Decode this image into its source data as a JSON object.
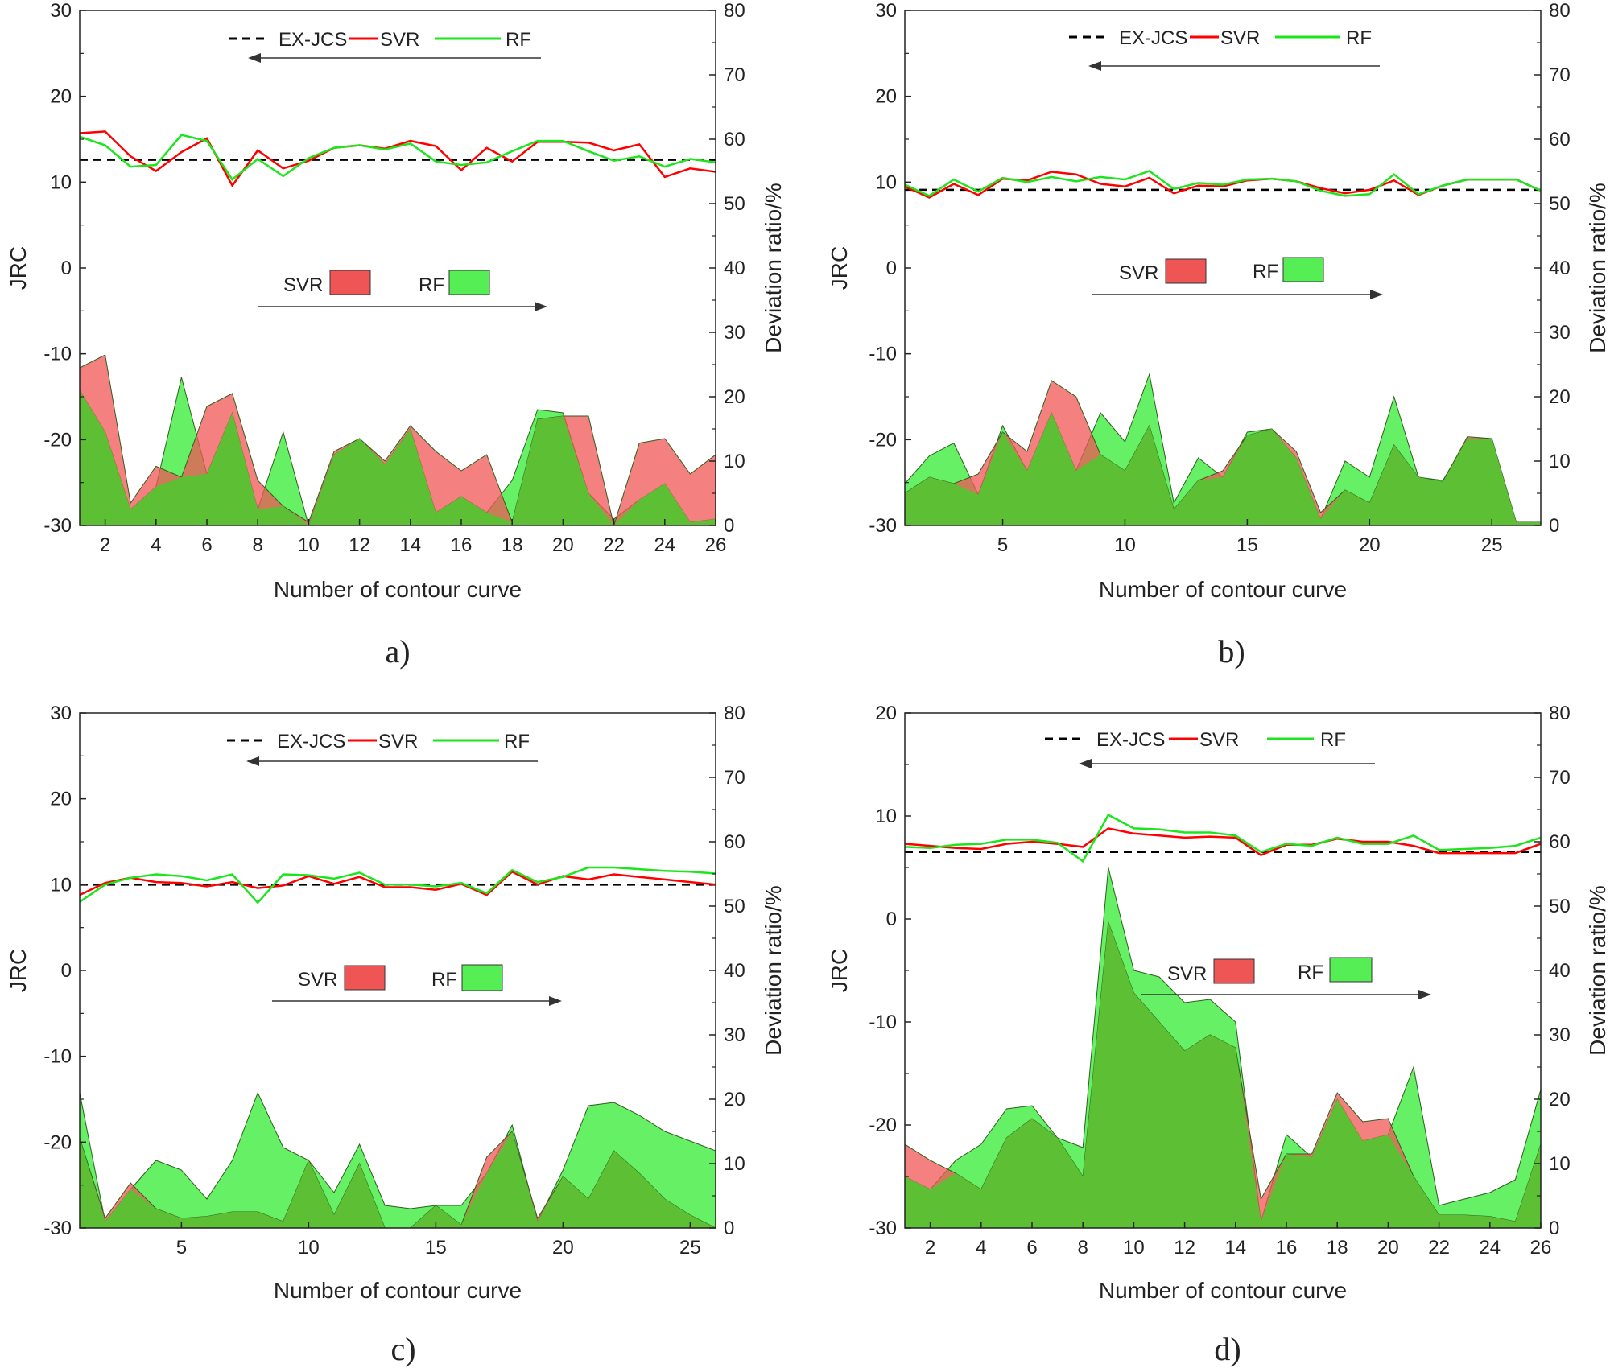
{
  "colors": {
    "svr_line": "#ff0000",
    "rf_line": "#1be51b",
    "svr_fill": "#f05555",
    "rf_fill": "#55ee55",
    "overlap_fill": "#5cbf34",
    "reference": "#000000",
    "axis": "#222222"
  },
  "chart_data": [
    {
      "type": "line+area",
      "caption": "a)",
      "xlabel": "Number of contour curve",
      "ylabel_left": "JRC",
      "ylabel_right": "Deviation ratio/%",
      "xlim": [
        1,
        26
      ],
      "xticks": [
        2,
        4,
        6,
        8,
        10,
        12,
        14,
        16,
        18,
        20,
        22,
        24,
        26
      ],
      "ylim_left": [
        -30,
        30
      ],
      "yticks_left": [
        -30,
        -20,
        -10,
        0,
        10,
        20,
        30
      ],
      "ylim_right": [
        0,
        80
      ],
      "yticks_right": [
        0,
        10,
        20,
        30,
        40,
        50,
        60,
        70,
        80
      ],
      "x": [
        1,
        2,
        3,
        4,
        5,
        6,
        7,
        8,
        9,
        10,
        11,
        12,
        13,
        14,
        15,
        16,
        17,
        18,
        19,
        20,
        21,
        22,
        23,
        24,
        25,
        26
      ],
      "ex_jcs": 12.6,
      "line_series": [
        {
          "name": "SVR",
          "axis": "left",
          "values": [
            15.7,
            15.9,
            13.0,
            11.3,
            13.5,
            15.1,
            9.6,
            13.7,
            11.6,
            12.5,
            14.0,
            14.3,
            13.9,
            14.8,
            14.2,
            11.4,
            14.0,
            12.4,
            14.7,
            14.7,
            14.6,
            13.7,
            14.4,
            10.6,
            11.6,
            11.2
          ]
        },
        {
          "name": "RF",
          "axis": "left",
          "values": [
            15.3,
            14.3,
            11.8,
            12.0,
            15.5,
            14.8,
            10.3,
            12.7,
            10.7,
            12.8,
            14.0,
            14.3,
            13.8,
            14.5,
            12.4,
            12.0,
            12.3,
            13.6,
            14.8,
            14.8,
            13.6,
            12.5,
            13.0,
            11.8,
            12.7,
            12.3
          ]
        }
      ],
      "area_series": [
        {
          "name": "SVR",
          "axis": "right",
          "values": [
            24.5,
            26.5,
            3.5,
            9.2,
            7.5,
            18.5,
            20.5,
            7.0,
            3.0,
            0.5,
            11.5,
            13.5,
            10.0,
            15.5,
            11.5,
            8.5,
            11.0,
            0.5,
            16.5,
            17.0,
            17.0,
            0.0,
            12.8,
            13.5,
            8.0,
            11.0
          ]
        },
        {
          "name": "RF",
          "axis": "right",
          "values": [
            21.0,
            14.5,
            2.5,
            6.0,
            23.0,
            8.0,
            17.5,
            2.5,
            14.5,
            0.0,
            11.0,
            13.5,
            9.5,
            15.0,
            2.0,
            4.5,
            2.0,
            7.0,
            18.0,
            17.5,
            5.0,
            1.0,
            4.0,
            6.5,
            0.5,
            1.0
          ]
        }
      ],
      "legend_lines": [
        "EX-JCS",
        "SVR",
        "RF"
      ],
      "legend_areas": [
        "SVR",
        "RF"
      ]
    },
    {
      "type": "line+area",
      "caption": "b)",
      "xlabel": "Number of contour curve",
      "ylabel_left": "JRC",
      "ylabel_right": "Deviation ratio/%",
      "xlim": [
        1,
        27
      ],
      "xticks": [
        5,
        10,
        15,
        20,
        25
      ],
      "ylim_left": [
        -30,
        30
      ],
      "yticks_left": [
        -30,
        -20,
        -10,
        0,
        10,
        20,
        30
      ],
      "ylim_right": [
        0,
        80
      ],
      "yticks_right": [
        0,
        10,
        20,
        30,
        40,
        50,
        60,
        70,
        80
      ],
      "x": [
        1,
        2,
        3,
        4,
        5,
        6,
        7,
        8,
        9,
        10,
        11,
        12,
        13,
        14,
        15,
        16,
        17,
        18,
        19,
        20,
        21,
        22,
        23,
        24,
        25,
        26,
        27
      ],
      "ex_jcs": 9.1,
      "line_series": [
        {
          "name": "SVR",
          "axis": "left",
          "values": [
            9.5,
            8.2,
            9.8,
            8.5,
            10.4,
            10.2,
            11.2,
            10.9,
            9.8,
            9.5,
            10.5,
            8.7,
            9.6,
            9.5,
            10.2,
            10.4,
            10.1,
            9.3,
            8.7,
            9.1,
            10.2,
            8.5,
            9.6,
            10.3,
            10.3,
            10.3,
            9.0
          ]
        },
        {
          "name": "RF",
          "axis": "left",
          "values": [
            9.7,
            8.4,
            10.3,
            8.9,
            10.5,
            10.0,
            10.6,
            10.1,
            10.6,
            10.3,
            11.3,
            9.2,
            9.9,
            9.7,
            10.3,
            10.4,
            10.1,
            9.0,
            8.4,
            8.6,
            10.9,
            8.6,
            9.6,
            10.3,
            10.3,
            10.3,
            9.0
          ]
        }
      ],
      "area_series": [
        {
          "name": "SVR",
          "axis": "right",
          "values": [
            5.0,
            7.5,
            6.5,
            8.0,
            14.5,
            11.5,
            22.5,
            20.0,
            11.0,
            8.5,
            15.5,
            2.5,
            7.0,
            8.5,
            14.0,
            15.0,
            11.5,
            2.0,
            5.5,
            3.5,
            12.5,
            7.5,
            6.8,
            13.8,
            13.5,
            0.5,
            0.5
          ]
        },
        {
          "name": "RF",
          "axis": "right",
          "values": [
            6.5,
            10.8,
            12.8,
            4.8,
            15.5,
            8.5,
            17.5,
            8.5,
            17.5,
            13.0,
            23.5,
            3.5,
            10.5,
            7.5,
            14.5,
            15.0,
            10.5,
            1.0,
            10.0,
            7.5,
            20.0,
            7.5,
            7.0,
            13.5,
            13.5,
            0.5,
            0.5
          ]
        }
      ],
      "legend_lines": [
        "EX-JCS",
        "SVR",
        "RF"
      ],
      "legend_areas": [
        "SVR",
        "RF"
      ]
    },
    {
      "type": "line+area",
      "caption": "c)",
      "xlabel": "Number of contour curve",
      "ylabel_left": "JRC",
      "ylabel_right": "Deviation ratio/%",
      "xlim": [
        1,
        26
      ],
      "xticks": [
        5,
        10,
        15,
        20,
        25
      ],
      "ylim_left": [
        -30,
        30
      ],
      "yticks_left": [
        -30,
        -20,
        -10,
        0,
        10,
        20,
        30
      ],
      "ylim_right": [
        0,
        80
      ],
      "yticks_right": [
        0,
        10,
        20,
        30,
        40,
        50,
        60,
        70,
        80
      ],
      "x": [
        1,
        2,
        3,
        4,
        5,
        6,
        7,
        8,
        9,
        10,
        11,
        12,
        13,
        14,
        15,
        16,
        17,
        18,
        19,
        20,
        21,
        22,
        23,
        24,
        25,
        26
      ],
      "ex_jcs": 10.0,
      "line_series": [
        {
          "name": "SVR",
          "axis": "left",
          "values": [
            8.8,
            10.2,
            10.8,
            10.3,
            10.2,
            9.8,
            10.3,
            9.6,
            9.9,
            11.0,
            10.1,
            10.9,
            9.7,
            9.7,
            9.4,
            10.1,
            8.8,
            11.5,
            10.0,
            11.0,
            10.6,
            11.2,
            10.9,
            10.6,
            10.3,
            10.0
          ]
        },
        {
          "name": "RF",
          "axis": "left",
          "values": [
            8.0,
            10.0,
            10.8,
            11.2,
            11.0,
            10.5,
            11.2,
            7.9,
            11.2,
            11.1,
            10.7,
            11.4,
            10.0,
            10.0,
            9.8,
            10.2,
            9.0,
            11.7,
            10.3,
            10.9,
            12.0,
            12.0,
            11.8,
            11.6,
            11.5,
            11.3
          ]
        }
      ],
      "area_series": [
        {
          "name": "SVR",
          "axis": "right",
          "values": [
            14.0,
            1.5,
            7.0,
            3.0,
            1.5,
            1.8,
            2.5,
            2.5,
            1.0,
            10.5,
            2.0,
            10.0,
            0.0,
            0.0,
            3.5,
            0.5,
            11.0,
            15.0,
            1.5,
            8.0,
            4.5,
            12.0,
            8.5,
            4.5,
            2.0,
            0.0
          ]
        },
        {
          "name": "RF",
          "axis": "right",
          "values": [
            21.0,
            1.0,
            6.0,
            10.5,
            9.0,
            4.5,
            10.5,
            21.0,
            12.5,
            10.5,
            5.5,
            13.0,
            3.5,
            3.0,
            3.5,
            3.5,
            8.5,
            16.0,
            1.0,
            9.0,
            19.0,
            19.5,
            17.5,
            15.0,
            13.5,
            12.0
          ]
        }
      ],
      "legend_lines": [
        "EX-JCS",
        "SVR",
        "RF"
      ],
      "legend_areas": [
        "SVR",
        "RF"
      ]
    },
    {
      "type": "line+area",
      "caption": "d)",
      "xlabel": "Number of contour curve",
      "ylabel_left": "JRC",
      "ylabel_right": "Deviation ratio/%",
      "xlim": [
        1,
        26
      ],
      "xticks": [
        2,
        4,
        6,
        8,
        10,
        12,
        14,
        16,
        18,
        20,
        22,
        24,
        26
      ],
      "ylim_left": [
        -30,
        20
      ],
      "yticks_left": [
        -30,
        -20,
        -10,
        0,
        10,
        20
      ],
      "ylim_right": [
        0,
        80
      ],
      "yticks_right": [
        0,
        10,
        20,
        30,
        40,
        50,
        60,
        70,
        80
      ],
      "x": [
        1,
        2,
        3,
        4,
        5,
        6,
        7,
        8,
        9,
        10,
        11,
        12,
        13,
        14,
        15,
        16,
        17,
        18,
        19,
        20,
        21,
        22,
        23,
        24,
        25,
        26
      ],
      "ex_jcs": 6.5,
      "line_series": [
        {
          "name": "SVR",
          "axis": "left",
          "values": [
            7.3,
            7.1,
            6.9,
            6.8,
            7.3,
            7.5,
            7.3,
            7.0,
            8.8,
            8.3,
            8.1,
            7.9,
            8.0,
            7.9,
            6.2,
            7.2,
            7.2,
            7.8,
            7.5,
            7.5,
            7.1,
            6.4,
            6.4,
            6.4,
            6.4,
            7.3
          ]
        },
        {
          "name": "RF",
          "axis": "left",
          "values": [
            7.0,
            6.9,
            7.2,
            7.3,
            7.7,
            7.7,
            7.4,
            5.6,
            10.1,
            8.8,
            8.7,
            8.4,
            8.4,
            8.1,
            6.5,
            7.3,
            7.1,
            7.9,
            7.3,
            7.3,
            8.1,
            6.7,
            6.8,
            6.9,
            7.1,
            7.9
          ]
        }
      ],
      "area_series": [
        {
          "name": "SVR",
          "axis": "right",
          "values": [
            13.0,
            10.5,
            8.5,
            6.0,
            14.0,
            17.0,
            14.0,
            8.0,
            47.5,
            36.5,
            32.0,
            27.5,
            30.0,
            28.0,
            4.5,
            11.5,
            11.5,
            21.0,
            16.5,
            17.0,
            8.0,
            2.0,
            2.0,
            1.8,
            1.0,
            13.0
          ]
        },
        {
          "name": "RF",
          "axis": "right",
          "values": [
            8.0,
            6.0,
            10.5,
            13.0,
            18.5,
            19.0,
            14.0,
            12.5,
            56.0,
            40.0,
            39.0,
            35.0,
            35.5,
            32.0,
            1.0,
            14.5,
            11.0,
            20.0,
            13.5,
            14.5,
            25.0,
            3.5,
            4.5,
            5.5,
            7.5,
            21.5
          ]
        }
      ],
      "legend_lines": [
        "EX-JCS",
        "SVR",
        "RF"
      ],
      "legend_areas": [
        "SVR",
        "RF"
      ]
    }
  ]
}
